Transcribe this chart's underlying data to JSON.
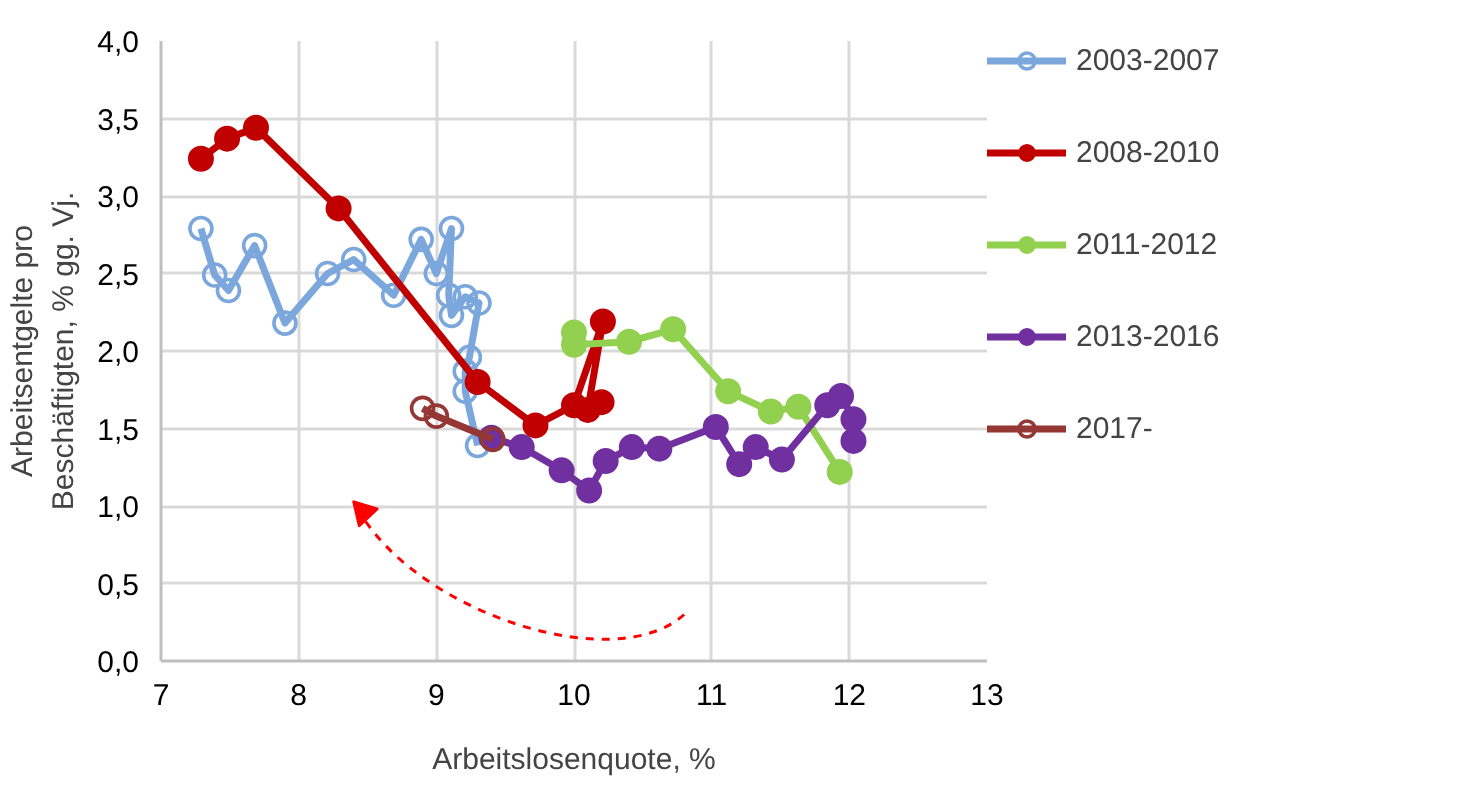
{
  "chart_data": {
    "type": "line",
    "xlabel": "Arbeitslosenquote, %",
    "ylabel": "Arbeitsentgelte pro\nBeschäftigten, % gg. Vj.",
    "xlim": [
      7,
      13
    ],
    "xticks": [
      7,
      8,
      9,
      10,
      11,
      12,
      13
    ],
    "ylim": [
      0,
      4
    ],
    "yticks": [
      {
        "value": 0,
        "label": "0,0"
      },
      {
        "value": 0.5,
        "label": "0,5"
      },
      {
        "value": 1,
        "label": "1,0"
      },
      {
        "value": 1.5,
        "label": "1,5"
      },
      {
        "value": 2,
        "label": "2,0"
      },
      {
        "value": 2.5,
        "label": "2,5"
      },
      {
        "value": 3,
        "label": "3,0"
      },
      {
        "value": 3.5,
        "label": "3,5"
      },
      {
        "value": 4,
        "label": "4,0"
      }
    ],
    "grid": true,
    "legend": "right",
    "line_style": "solid",
    "series": [
      {
        "name": "2003-2007",
        "color": "#7ba7dc",
        "marker": "open_circle",
        "x": [
          7.29,
          7.39,
          7.49,
          7.68,
          7.9,
          8.21,
          8.4,
          8.69,
          8.89,
          9.0,
          9.11,
          9.09,
          9.11,
          9.21,
          9.31,
          9.24,
          9.21,
          9.21,
          9.3
        ],
        "values": [
          2.79,
          2.49,
          2.39,
          2.68,
          2.18,
          2.5,
          2.59,
          2.36,
          2.72,
          2.5,
          2.79,
          2.36,
          2.23,
          2.35,
          2.31,
          1.96,
          1.87,
          1.74,
          1.39
        ]
      },
      {
        "name": "2008-2010",
        "color": "#c00000",
        "marker": "circle",
        "x": [
          7.29,
          7.48,
          7.69,
          8.29,
          9.3,
          9.72,
          10.0,
          10.21,
          10.1,
          10.2
        ],
        "values": [
          3.24,
          3.37,
          3.44,
          2.92,
          1.8,
          1.52,
          1.65,
          2.19,
          1.62,
          1.67
        ]
      },
      {
        "name": "2011-2012",
        "color": "#92d050",
        "marker": "circle",
        "x": [
          10.0,
          10.0,
          10.4,
          10.72,
          11.12,
          11.43,
          11.63,
          11.93
        ],
        "values": [
          2.12,
          2.04,
          2.06,
          2.14,
          1.74,
          1.61,
          1.64,
          1.22
        ]
      },
      {
        "name": "2013-2016",
        "color": "#7030a0",
        "marker": "circle",
        "x": [
          9.4,
          9.62,
          9.91,
          10.11,
          10.23,
          10.42,
          10.62,
          11.03,
          11.2,
          11.32,
          11.51,
          11.84,
          11.94,
          12.03,
          12.03
        ],
        "values": [
          1.44,
          1.38,
          1.23,
          1.1,
          1.29,
          1.38,
          1.37,
          1.51,
          1.27,
          1.38,
          1.3,
          1.65,
          1.71,
          1.56,
          1.42
        ]
      },
      {
        "name": "2017-",
        "color": "#953735",
        "marker": "open_circle",
        "x": [
          8.9,
          9.0,
          9.41
        ],
        "values": [
          1.63,
          1.58,
          1.43
        ]
      }
    ]
  }
}
